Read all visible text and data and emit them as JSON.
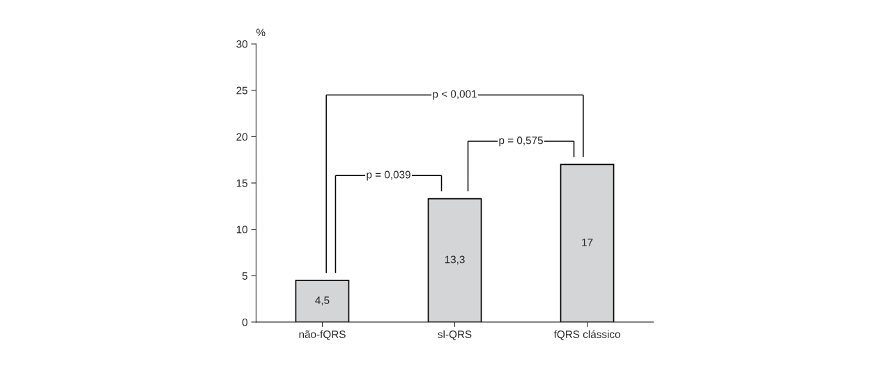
{
  "chart_data": {
    "type": "bar",
    "ylabel": "%",
    "categories": [
      "não-fQRS",
      "sl-QRS",
      "fQRS clássico"
    ],
    "values": [
      4.5,
      13.3,
      17
    ],
    "color": "#d4d5d7",
    "ylim": [
      0,
      30
    ],
    "yticks": [
      0,
      5,
      10,
      15,
      20,
      25,
      30
    ],
    "value_labels": [
      "4,5",
      "13,3",
      "17"
    ],
    "grid": false,
    "annotations": [
      "p = 0,039",
      "p = 0,575",
      "p < 0,001"
    ]
  }
}
